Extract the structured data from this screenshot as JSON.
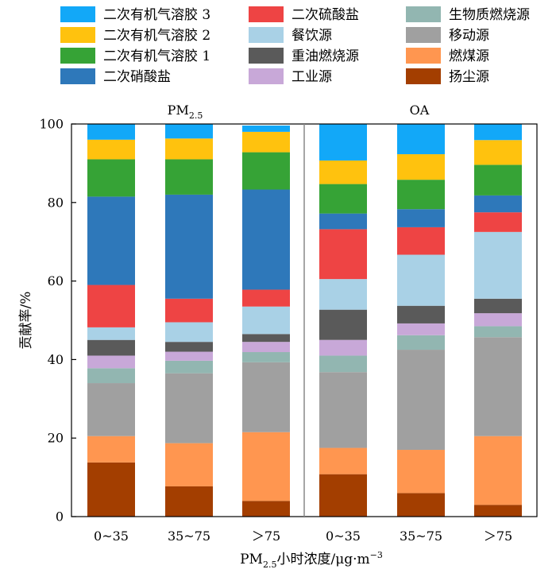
{
  "chart_data": {
    "type": "bar",
    "stacked": true,
    "panels": [
      "PM2.5",
      "OA"
    ],
    "panel_labels": [
      {
        "main": "PM",
        "sub": "2.5"
      },
      {
        "main": "OA",
        "sub": ""
      }
    ],
    "categories": [
      "0~35",
      "35~75",
      "＞75",
      "0~35",
      "35~75",
      "＞75"
    ],
    "ylabel": "贡献率/%",
    "xlabel": {
      "main": "PM",
      "sub": "2.5",
      "rest": "小时浓度/μg·m",
      "sup": "−3"
    },
    "ylim": [
      0,
      100
    ],
    "yticks": [
      0,
      20,
      40,
      60,
      80,
      100
    ],
    "legend_position": "top",
    "series": [
      {
        "name": "扬尘源",
        "color": "#A33E00",
        "values": [
          13.8,
          7.7,
          4.0,
          10.8,
          6.0,
          3.0
        ]
      },
      {
        "name": "燃煤源",
        "color": "#FF9650",
        "values": [
          6.7,
          11.0,
          17.5,
          6.7,
          11.0,
          17.5
        ]
      },
      {
        "name": "移动源",
        "color": "#A0A0A0",
        "values": [
          13.5,
          17.8,
          17.8,
          19.3,
          25.5,
          25.2
        ]
      },
      {
        "name": "生物质燃烧源",
        "color": "#92B6B1",
        "values": [
          3.8,
          3.2,
          2.6,
          4.2,
          3.7,
          2.8
        ]
      },
      {
        "name": "工业源",
        "color": "#C8A8D8",
        "values": [
          3.2,
          2.3,
          2.6,
          4.0,
          3.0,
          3.3
        ]
      },
      {
        "name": "重油燃烧源",
        "color": "#5A5A5A",
        "values": [
          4.0,
          2.5,
          2.0,
          7.7,
          4.5,
          3.7
        ]
      },
      {
        "name": "餐饮源",
        "color": "#A9D1E6",
        "values": [
          3.2,
          5.0,
          7.0,
          7.8,
          13.0,
          17.0
        ]
      },
      {
        "name": "二次硫酸盐",
        "color": "#EE4444",
        "values": [
          10.8,
          6.0,
          4.3,
          12.7,
          7.0,
          5.0
        ]
      },
      {
        "name": "二次硝酸盐",
        "color": "#2E78BA",
        "values": [
          22.5,
          26.5,
          25.5,
          4.0,
          4.6,
          4.3
        ]
      },
      {
        "name": "二次有机气溶胶 1",
        "color": "#36A336",
        "values": [
          9.5,
          9.0,
          9.5,
          7.5,
          7.5,
          7.8
        ]
      },
      {
        "name": "二次有机气溶胶 2",
        "color": "#FFC20E",
        "values": [
          5.0,
          5.3,
          5.2,
          6.0,
          6.5,
          6.3
        ]
      },
      {
        "name": "二次有机气溶胶 3",
        "color": "#12A8F8",
        "values": [
          4.0,
          3.7,
          1.6,
          9.3,
          7.7,
          4.1
        ]
      }
    ]
  }
}
